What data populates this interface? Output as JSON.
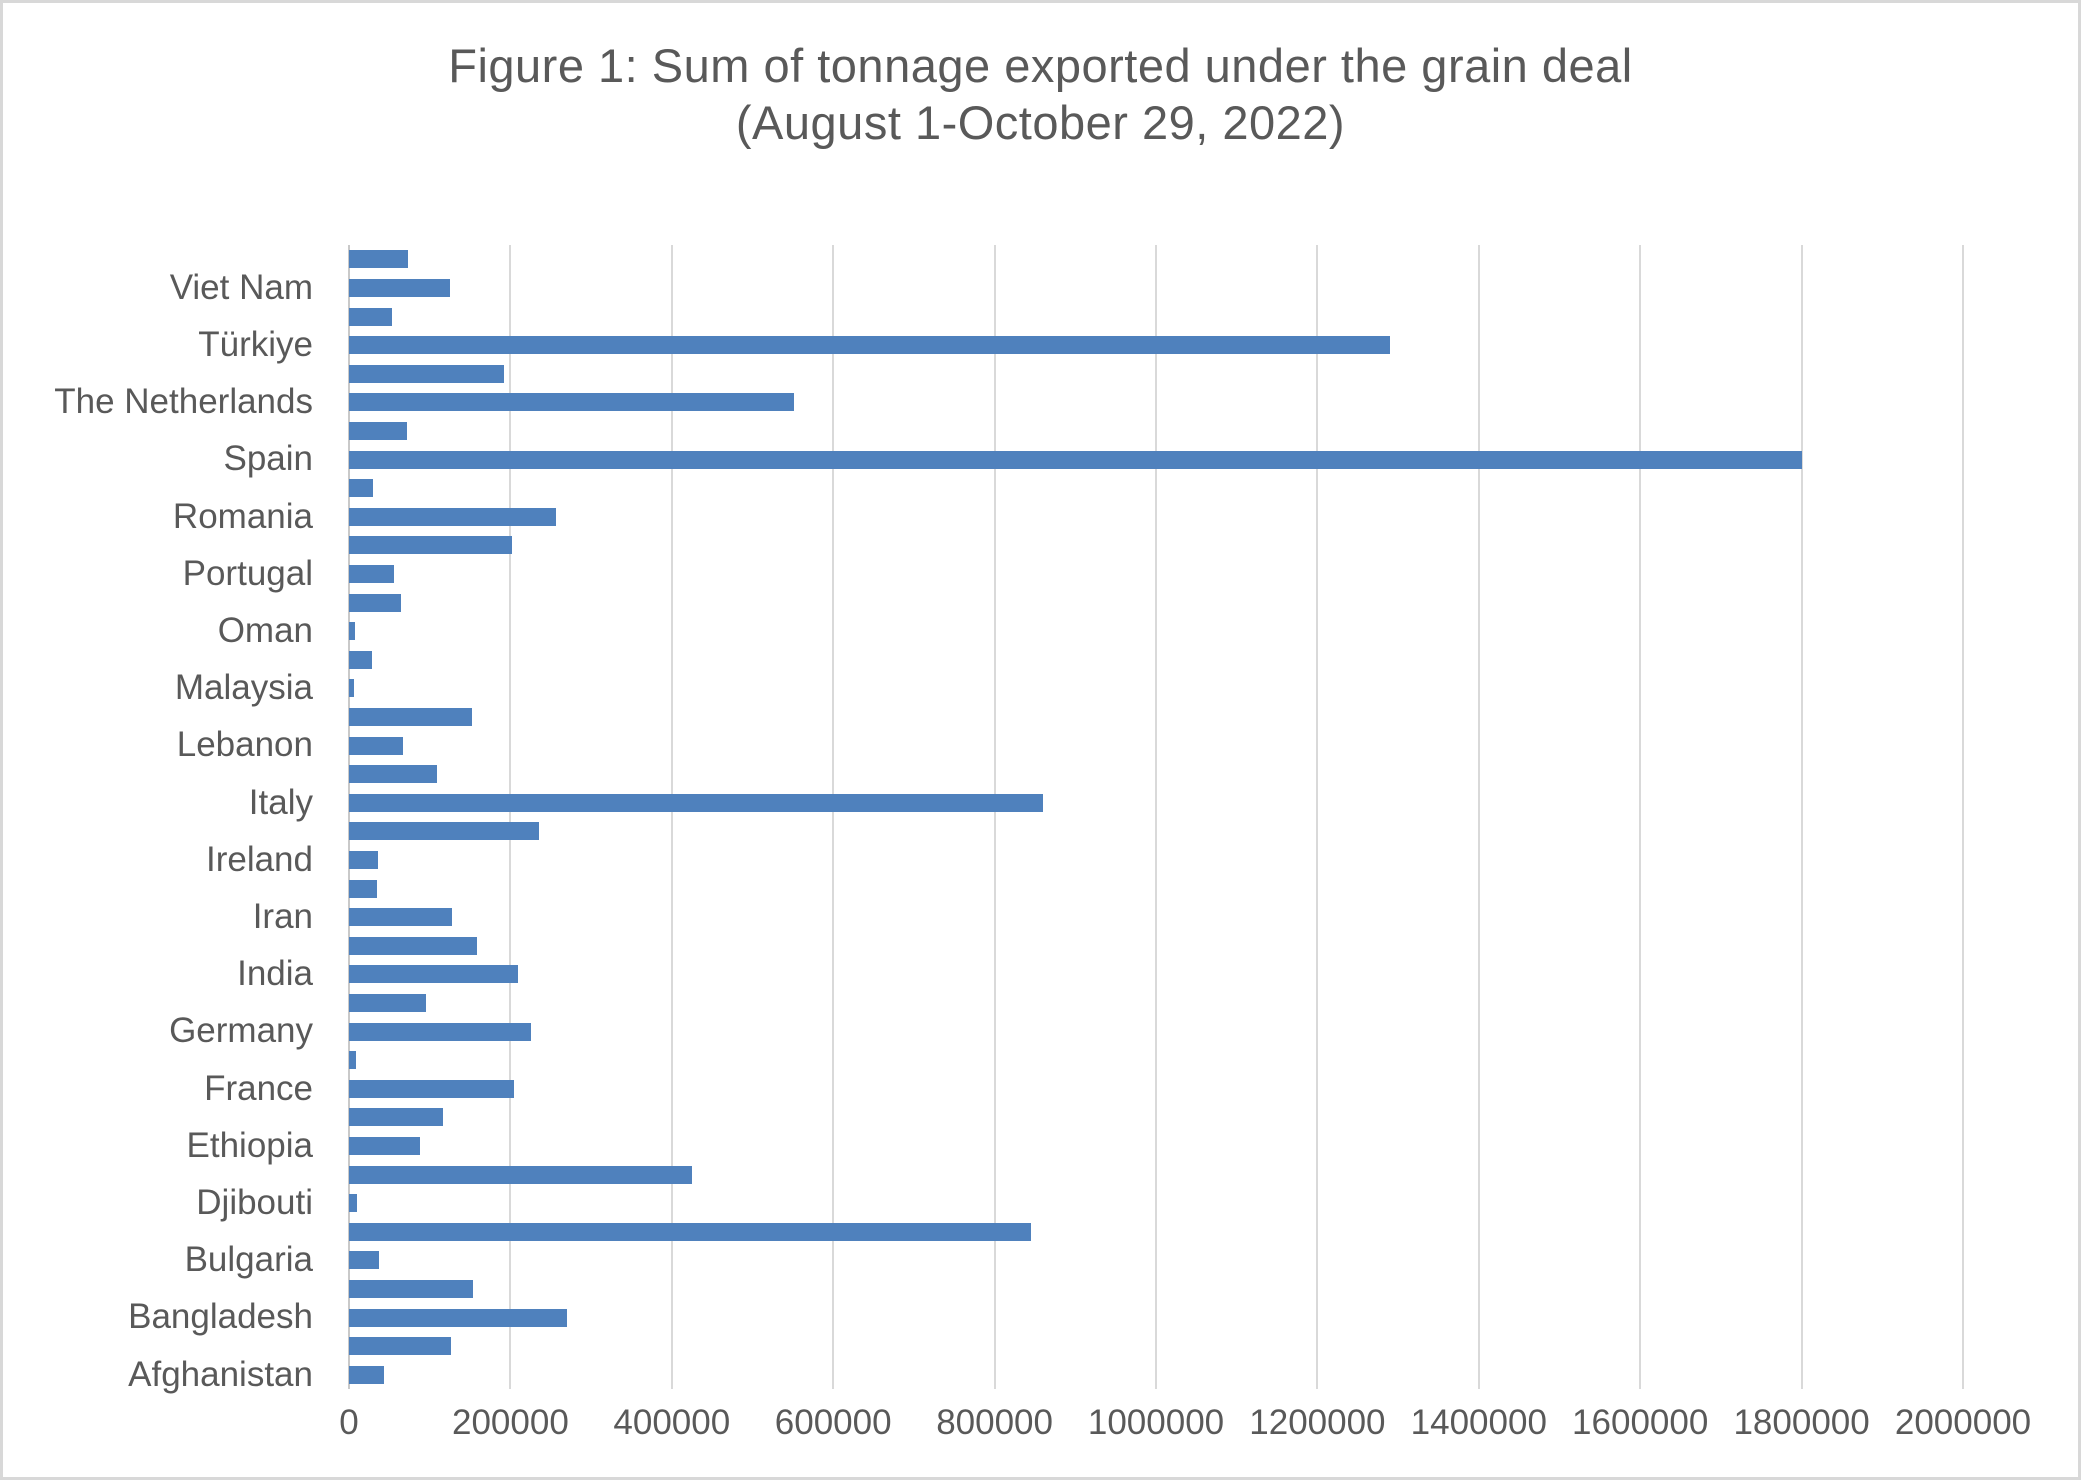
{
  "title": {
    "line1": "Figure 1: Sum of tonnage exported under the grain deal",
    "line2": "(August 1-October 29, 2022)"
  },
  "chart_data": {
    "type": "bar",
    "orientation": "horizontal",
    "title": "Figure 1: Sum of tonnage exported under the grain deal (August 1-October 29, 2022)",
    "xlabel": "",
    "ylabel": "",
    "xlim": [
      0,
      2000000
    ],
    "grid": true,
    "legend": "none",
    "bar_color": "#4f81bd",
    "gridline_color": "#d9d9d9",
    "text_color": "#595959",
    "note": "category labels shown for every other bar; unlabeled bars are intermediate categories",
    "categories": [
      "",
      "Viet Nam",
      "",
      "Türkiye",
      "",
      "The Netherlands",
      "",
      "Spain",
      "",
      "Romania",
      "",
      "Portugal",
      "",
      "Oman",
      "",
      "Malaysia",
      "",
      "Lebanon",
      "",
      "Italy",
      "",
      "Ireland",
      "",
      "Iran",
      "",
      "India",
      "",
      "Germany",
      "",
      "France",
      "",
      "Ethiopia",
      "",
      "Djibouti",
      "",
      "Bulgaria",
      "",
      "Bangladesh",
      "",
      "Afghanistan"
    ],
    "values": [
      73000,
      125000,
      53000,
      1290000,
      192000,
      552000,
      72000,
      1800000,
      30000,
      256000,
      202000,
      56000,
      64000,
      7000,
      28000,
      6000,
      152000,
      67000,
      109000,
      860000,
      236000,
      36000,
      35000,
      128000,
      158000,
      210000,
      96000,
      226000,
      9000,
      205000,
      116000,
      88000,
      425000,
      10000,
      845000,
      37000,
      154000,
      270000,
      126000,
      43000
    ],
    "x_ticks": [
      0,
      200000,
      400000,
      600000,
      800000,
      1000000,
      1200000,
      1400000,
      1600000,
      1800000,
      2000000
    ],
    "x_tick_labels": [
      "0",
      "200000",
      "400000",
      "600000",
      "800000",
      "1000000",
      "1200000",
      "1400000",
      "1600000",
      "1800000",
      "2000000"
    ]
  }
}
